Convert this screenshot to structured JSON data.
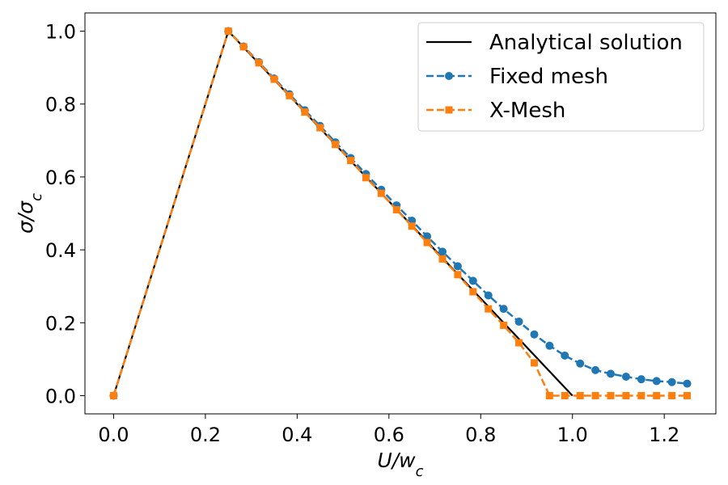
{
  "chart_data": {
    "type": "line",
    "title": "",
    "xlabel": "U/w_c",
    "ylabel": "σ/σ_c",
    "xlim": [
      -0.0625,
      1.3125
    ],
    "ylim": [
      -0.05,
      1.05
    ],
    "xticks": [
      0.0,
      0.2,
      0.4,
      0.6,
      0.8,
      1.0,
      1.2
    ],
    "xtick_labels": [
      "0.0",
      "0.2",
      "0.4",
      "0.6",
      "0.8",
      "1.0",
      "1.2"
    ],
    "yticks": [
      0.0,
      0.2,
      0.4,
      0.6,
      0.8,
      1.0
    ],
    "ytick_labels": [
      "0.0",
      "0.2",
      "0.4",
      "0.6",
      "0.8",
      "1.0"
    ],
    "grid": false,
    "legend_position": "top-right",
    "series": [
      {
        "name": "Analytical solution",
        "color": "#000000",
        "style": "solid",
        "marker": "none",
        "x": [
          0.0,
          0.25,
          1.0
        ],
        "y": [
          0.0,
          1.0,
          0.0
        ]
      },
      {
        "name": "Fixed mesh",
        "color": "#1f77b4",
        "style": "dashed",
        "marker": "circle",
        "x": [
          0.0,
          0.25,
          0.2833,
          0.3167,
          0.35,
          0.3833,
          0.4167,
          0.45,
          0.4833,
          0.5167,
          0.55,
          0.5833,
          0.6167,
          0.65,
          0.6833,
          0.7167,
          0.75,
          0.7833,
          0.8167,
          0.85,
          0.8833,
          0.9167,
          0.95,
          0.9833,
          1.0167,
          1.05,
          1.0833,
          1.1167,
          1.15,
          1.1833,
          1.2167,
          1.25
        ],
        "y": [
          0.0,
          1.0,
          0.958,
          0.915,
          0.87,
          0.827,
          0.783,
          0.74,
          0.695,
          0.652,
          0.608,
          0.565,
          0.522,
          0.48,
          0.437,
          0.395,
          0.355,
          0.315,
          0.275,
          0.238,
          0.203,
          0.168,
          0.137,
          0.11,
          0.088,
          0.07,
          0.06,
          0.052,
          0.045,
          0.04,
          0.037,
          0.033
        ]
      },
      {
        "name": "X-Mesh",
        "color": "#ff7f0e",
        "style": "dashed",
        "marker": "square",
        "x": [
          0.0,
          0.25,
          0.2833,
          0.3167,
          0.35,
          0.3833,
          0.4167,
          0.45,
          0.4833,
          0.5167,
          0.55,
          0.5833,
          0.6167,
          0.65,
          0.6833,
          0.7167,
          0.75,
          0.7833,
          0.8167,
          0.85,
          0.8833,
          0.9167,
          0.95,
          0.9833,
          1.0167,
          1.05,
          1.0833,
          1.1167,
          1.15,
          1.1833,
          1.2167,
          1.25
        ],
        "y": [
          0.0,
          1.0,
          0.957,
          0.913,
          0.868,
          0.823,
          0.778,
          0.735,
          0.689,
          0.645,
          0.598,
          0.555,
          0.51,
          0.465,
          0.42,
          0.375,
          0.332,
          0.285,
          0.238,
          0.193,
          0.145,
          0.09,
          0.0,
          0.0,
          0.0,
          0.0,
          0.0,
          0.0,
          0.0,
          0.0,
          0.0,
          0.0
        ]
      }
    ]
  }
}
